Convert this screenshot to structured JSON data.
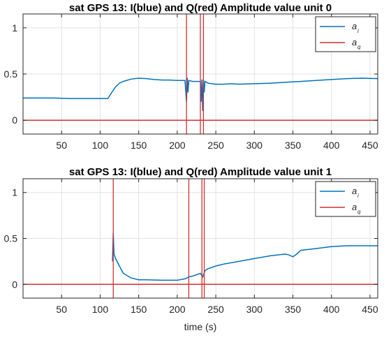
{
  "chart_data": [
    {
      "type": "line",
      "title": "sat GPS 13: I(blue) and Q(red) Amplitude value unit 0",
      "xlabel": "",
      "ylabel": "",
      "xlim": [
        0,
        460
      ],
      "ylim": [
        -0.15,
        1.15
      ],
      "xticks": [
        50,
        100,
        150,
        200,
        250,
        300,
        350,
        400,
        450
      ],
      "yticks": [
        0,
        0.5,
        1
      ],
      "grid": true,
      "legend_position": "top-right",
      "series": [
        {
          "name": "a_i",
          "color": "#0072BD",
          "x": [
            0,
            20,
            40,
            60,
            80,
            100,
            110,
            115,
            120,
            125,
            130,
            140,
            150,
            160,
            170,
            180,
            190,
            200,
            210,
            212,
            213,
            214,
            215,
            220,
            230,
            231,
            232,
            233,
            234,
            235,
            236,
            240,
            250,
            260,
            270,
            280,
            300,
            320,
            340,
            360,
            380,
            400,
            420,
            440,
            460
          ],
          "y": [
            0.24,
            0.24,
            0.24,
            0.235,
            0.235,
            0.235,
            0.235,
            0.3,
            0.36,
            0.4,
            0.42,
            0.445,
            0.455,
            0.45,
            0.44,
            0.435,
            0.435,
            0.43,
            0.43,
            0.2,
            0.46,
            0.3,
            0.43,
            0.42,
            0.42,
            0.2,
            0.44,
            0.1,
            0.44,
            0.3,
            0.42,
            0.4,
            0.39,
            0.39,
            0.395,
            0.39,
            0.395,
            0.4,
            0.41,
            0.42,
            0.43,
            0.44,
            0.45,
            0.455,
            0.45
          ]
        },
        {
          "name": "a_q",
          "color": "#D32F2F",
          "x": [
            0,
            460
          ],
          "y": [
            0,
            0
          ],
          "spikes": [
            212,
            230,
            234
          ]
        }
      ]
    },
    {
      "type": "line",
      "title": "sat GPS 13: I(blue) and Q(red) Amplitude value unit 1",
      "xlabel": "time (s)",
      "ylabel": "",
      "xlim": [
        0,
        460
      ],
      "ylim": [
        -0.15,
        1.15
      ],
      "xticks": [
        50,
        100,
        150,
        200,
        250,
        300,
        350,
        400,
        450
      ],
      "yticks": [
        0,
        0.5,
        1
      ],
      "grid": true,
      "legend_position": "top-right",
      "series": [
        {
          "name": "a_i",
          "color": "#0072BD",
          "x": [
            116,
            117,
            118,
            120,
            125,
            130,
            140,
            150,
            160,
            180,
            200,
            210,
            215,
            220,
            230,
            233,
            236,
            240,
            250,
            260,
            280,
            300,
            320,
            340,
            345,
            350,
            355,
            360,
            380,
            400,
            420,
            440,
            460
          ],
          "y": [
            0.25,
            0.56,
            0.33,
            0.28,
            0.2,
            0.12,
            0.07,
            0.05,
            0.05,
            0.045,
            0.045,
            0.06,
            0.08,
            0.09,
            0.12,
            0.08,
            0.15,
            0.17,
            0.2,
            0.22,
            0.25,
            0.28,
            0.31,
            0.33,
            0.32,
            0.3,
            0.33,
            0.37,
            0.39,
            0.41,
            0.42,
            0.42,
            0.42
          ]
        },
        {
          "name": "a_q",
          "color": "#D32F2F",
          "x": [
            0,
            460
          ],
          "y": [
            0,
            0
          ],
          "spikes": [
            117,
            215,
            232,
            235
          ]
        }
      ]
    }
  ]
}
